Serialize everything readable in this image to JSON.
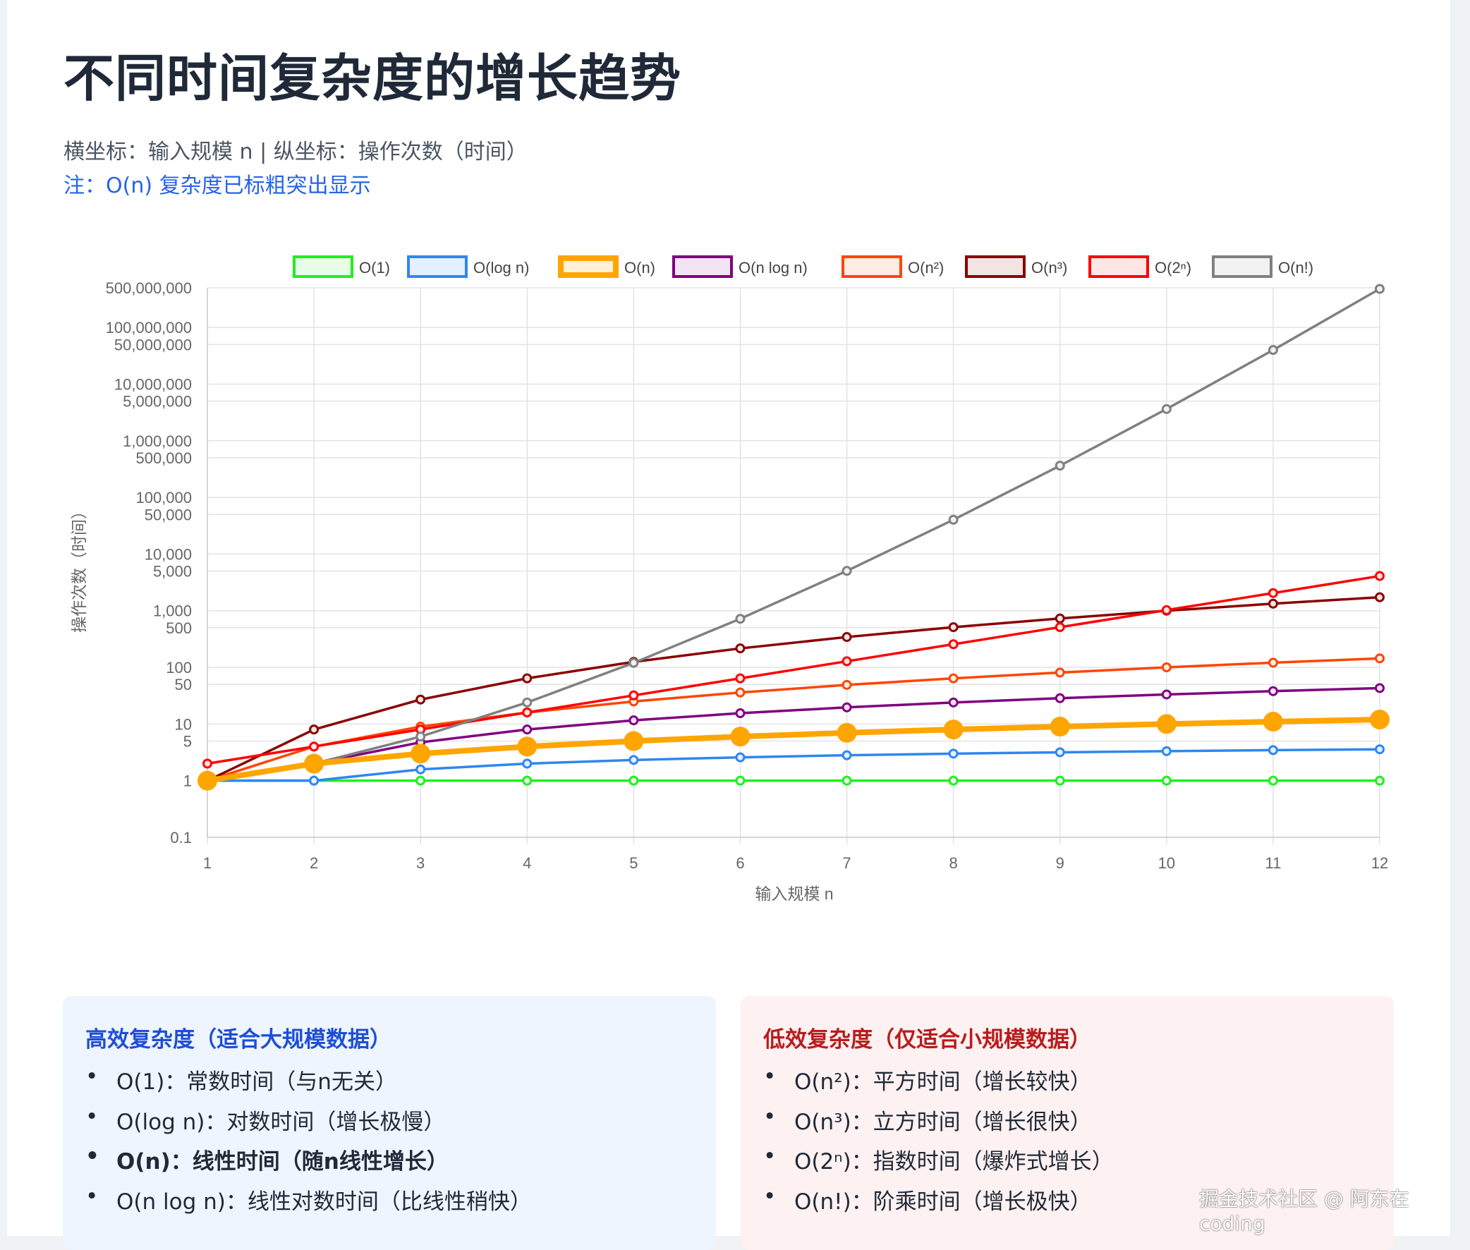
{
  "header": {
    "title": "不同时间复杂度的增长趋势",
    "subtitle": "横坐标：输入规模 n | 纵坐标：操作次数（时间）",
    "note": "注：O(n) 复杂度已标粗突出显示"
  },
  "chart_data": {
    "type": "line",
    "xlabel": "输入规模 n",
    "ylabel": "操作次数（时间）",
    "yscale": "log",
    "ylim": [
      0.1,
      500000000
    ],
    "legend_position": "top",
    "grid": true,
    "x": [
      1,
      2,
      3,
      4,
      5,
      6,
      7,
      8,
      9,
      10,
      11,
      12
    ],
    "x_ticks": [
      "1",
      "2",
      "3",
      "4",
      "5",
      "6",
      "7",
      "8",
      "9",
      "10",
      "11",
      "12"
    ],
    "y_ticks": [
      {
        "value": 500000000,
        "label": "500,000,000"
      },
      {
        "value": 100000000,
        "label": "100,000,000"
      },
      {
        "value": 50000000,
        "label": "50,000,000"
      },
      {
        "value": 10000000,
        "label": "10,000,000"
      },
      {
        "value": 5000000,
        "label": "5,000,000"
      },
      {
        "value": 1000000,
        "label": "1,000,000"
      },
      {
        "value": 500000,
        "label": "500,000"
      },
      {
        "value": 100000,
        "label": "100,000"
      },
      {
        "value": 50000,
        "label": "50,000"
      },
      {
        "value": 10000,
        "label": "10,000"
      },
      {
        "value": 5000,
        "label": "5,000"
      },
      {
        "value": 1000,
        "label": "1,000"
      },
      {
        "value": 500,
        "label": "500"
      },
      {
        "value": 100,
        "label": "100"
      },
      {
        "value": 50,
        "label": "50"
      },
      {
        "value": 10,
        "label": "10"
      },
      {
        "value": 5,
        "label": "5"
      },
      {
        "value": 1,
        "label": "1"
      },
      {
        "value": 0.1,
        "label": "0.1"
      }
    ],
    "series": [
      {
        "name": "O(1)",
        "color": "#1ff01f",
        "fill": "#e8fde8",
        "highlight": false,
        "values": [
          1,
          1,
          1,
          1,
          1,
          1,
          1,
          1,
          1,
          1,
          1,
          1
        ]
      },
      {
        "name": "O(log n)",
        "color": "#2f86f0",
        "fill": "#e3f0ff",
        "highlight": false,
        "values": [
          1,
          1,
          1.58,
          2,
          2.32,
          2.58,
          2.81,
          3,
          3.17,
          3.32,
          3.46,
          3.58
        ]
      },
      {
        "name": "O(n)",
        "color": "#ffa500",
        "fill": "#fff0d6",
        "highlight": true,
        "values": [
          1,
          2,
          3,
          4,
          5,
          6,
          7,
          8,
          9,
          10,
          11,
          12
        ]
      },
      {
        "name": "O(n log n)",
        "color": "#800080",
        "fill": "#f3e4f3",
        "highlight": false,
        "values": [
          1,
          2,
          4.75,
          8,
          11.61,
          15.51,
          19.65,
          24,
          28.53,
          33.22,
          38.05,
          43.02
        ]
      },
      {
        "name": "O(n²)",
        "color": "#ff4500",
        "fill": "#ffece4",
        "highlight": false,
        "values": [
          1,
          4,
          9,
          16,
          25,
          36,
          49,
          64,
          81,
          100,
          121,
          144
        ]
      },
      {
        "name": "O(n³)",
        "color": "#8b0000",
        "fill": "#f3e4e4",
        "highlight": false,
        "values": [
          1,
          8,
          27,
          64,
          125,
          216,
          343,
          512,
          729,
          1000,
          1331,
          1728
        ]
      },
      {
        "name": "O(2ⁿ)",
        "color": "#ff0000",
        "fill": "#ffe6e6",
        "highlight": false,
        "values": [
          2,
          4,
          8,
          16,
          32,
          64,
          128,
          256,
          512,
          1024,
          2048,
          4096
        ]
      },
      {
        "name": "O(n!)",
        "color": "#808080",
        "fill": "#f2f2f2",
        "highlight": false,
        "values": [
          1,
          2,
          6,
          24,
          120,
          720,
          5040,
          40320,
          362880,
          3628800,
          39916800,
          479001600
        ]
      }
    ]
  },
  "efficient": {
    "heading": "高效复杂度（适合大规模数据）",
    "items": [
      "O(1)：常数时间（与n无关）",
      "O(log n)：对数时间（增长极慢）",
      "O(n)：线性时间（随n线性增长）",
      "O(n log n)：线性对数时间（比线性稍快）"
    ]
  },
  "inefficient": {
    "heading": "低效复杂度（仅适合小规模数据）",
    "items": [
      "O(n²)：平方时间（增长较快）",
      "O(n³)：立方时间（增长很快）",
      "O(2ⁿ)：指数时间（爆炸式增长）",
      "O(n!)：阶乘时间（增长极快）"
    ]
  },
  "watermark": "掘金技术社区 @ 阿东在coding"
}
